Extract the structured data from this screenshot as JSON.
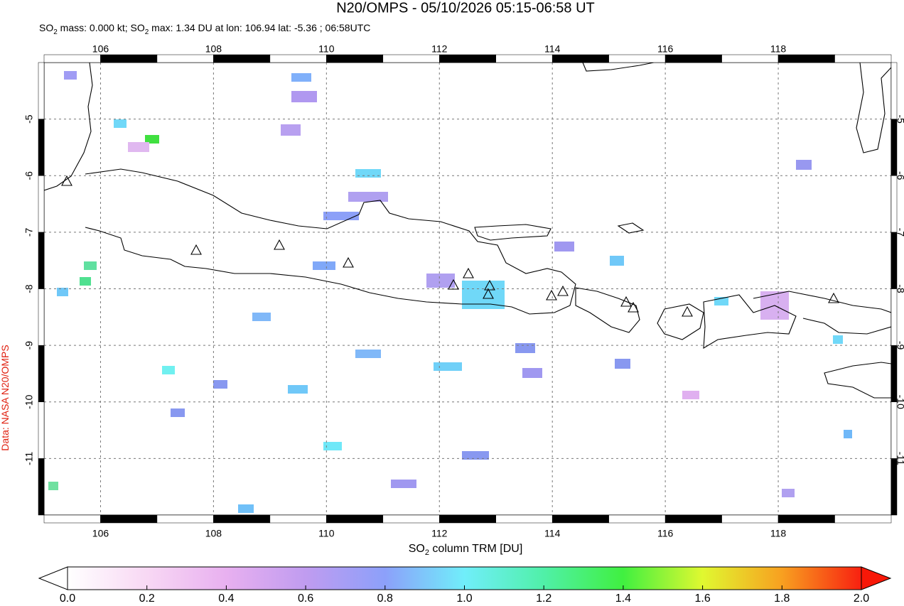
{
  "title": "N20/OMPS - 05/10/2026 05:15-06:58 UT",
  "subtitle": {
    "parts": [
      "SO",
      "2",
      " mass: 0.000 kt; SO",
      "2",
      " max: 1.34 DU at lon: 106.94 lat: -5.36 ; 06:58UTC"
    ]
  },
  "credit": "Data: NASA N20/OMPS",
  "map": {
    "xlim": [
      105,
      120
    ],
    "ylim": [
      -12,
      -4
    ],
    "xticks": [
      106,
      108,
      110,
      112,
      114,
      116,
      118
    ],
    "yticks": [
      -5,
      -6,
      -7,
      -8,
      -9,
      -10,
      -11
    ]
  },
  "colorbar": {
    "label_parts": [
      "SO",
      "2",
      " column TRM [DU]"
    ],
    "range": [
      0,
      2
    ],
    "ticks": [
      {
        "value": 0,
        "label": "0.0"
      },
      {
        "value": 0.2,
        "label": "0.2"
      },
      {
        "value": 0.4,
        "label": "0.4"
      },
      {
        "value": 0.6,
        "label": "0.6"
      },
      {
        "value": 0.8,
        "label": "0.8"
      },
      {
        "value": 1,
        "label": "1.0"
      },
      {
        "value": 1.2,
        "label": "1.2"
      },
      {
        "value": 1.4,
        "label": "1.4"
      },
      {
        "value": 1.6,
        "label": "1.6"
      },
      {
        "value": 1.8,
        "label": "1.8"
      },
      {
        "value": 2,
        "label": "2.0"
      }
    ]
  }
}
